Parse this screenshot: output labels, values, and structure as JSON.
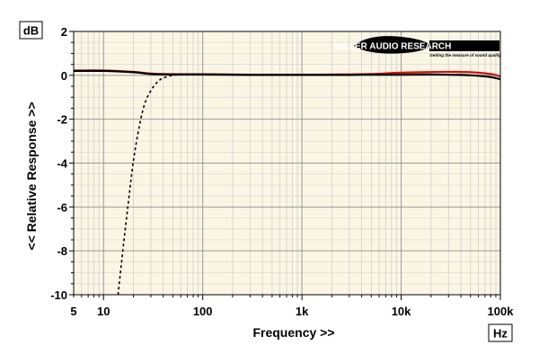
{
  "chart_data": {
    "type": "line",
    "title": "",
    "xlabel": "Frequency >>",
    "ylabel": "<< Relative Response >>",
    "x_unit": "Hz",
    "y_unit": "dB",
    "x_scale": "log",
    "xlim": [
      5,
      100000
    ],
    "ylim": [
      -10,
      2
    ],
    "x_ticks": [
      {
        "value": 5,
        "label": "5"
      },
      {
        "value": 10,
        "label": "10"
      },
      {
        "value": 100,
        "label": "100"
      },
      {
        "value": 1000,
        "label": "1k"
      },
      {
        "value": 10000,
        "label": "10k"
      },
      {
        "value": 100000,
        "label": "100k"
      }
    ],
    "y_ticks": [
      {
        "value": 2,
        "label": "2"
      },
      {
        "value": 0,
        "label": "0"
      },
      {
        "value": -2,
        "label": "-2"
      },
      {
        "value": -4,
        "label": "-4"
      },
      {
        "value": -6,
        "label": "-6"
      },
      {
        "value": -8,
        "label": "-8"
      },
      {
        "value": -10,
        "label": "-10"
      }
    ],
    "grid": true,
    "legend": "none",
    "series": [
      {
        "color": "#cc1111",
        "style": "solid",
        "x": [
          5,
          10,
          20,
          30,
          50,
          100,
          300,
          1000,
          3000,
          5000,
          10000,
          20000,
          30000,
          50000,
          80000,
          100000
        ],
        "y": [
          0.22,
          0.22,
          0.16,
          0.08,
          0.05,
          0.05,
          0.03,
          0.03,
          0.04,
          0.06,
          0.12,
          0.15,
          0.16,
          0.14,
          0.06,
          -0.05
        ]
      },
      {
        "color": "#000000",
        "style": "solid",
        "x": [
          5,
          10,
          20,
          30,
          50,
          100,
          300,
          1000,
          3000,
          5000,
          10000,
          20000,
          30000,
          50000,
          80000,
          100000
        ],
        "y": [
          0.2,
          0.2,
          0.14,
          0.06,
          0.04,
          0.04,
          0.02,
          0.02,
          0.02,
          0.03,
          0.03,
          0.04,
          0.03,
          0.0,
          -0.08,
          -0.18
        ]
      },
      {
        "color": "#000000",
        "style": "dashed",
        "x": [
          14,
          16,
          18,
          20,
          23,
          26,
          30,
          35,
          40,
          50,
          60
        ],
        "y": [
          -10,
          -7.6,
          -5.6,
          -3.9,
          -2.3,
          -1.3,
          -0.7,
          -0.3,
          -0.12,
          0.0,
          0.03
        ]
      }
    ]
  },
  "logo": {
    "name": "MILLER AUDIO RESEARCH",
    "tagline": "Getting the measure of sound quality"
  }
}
